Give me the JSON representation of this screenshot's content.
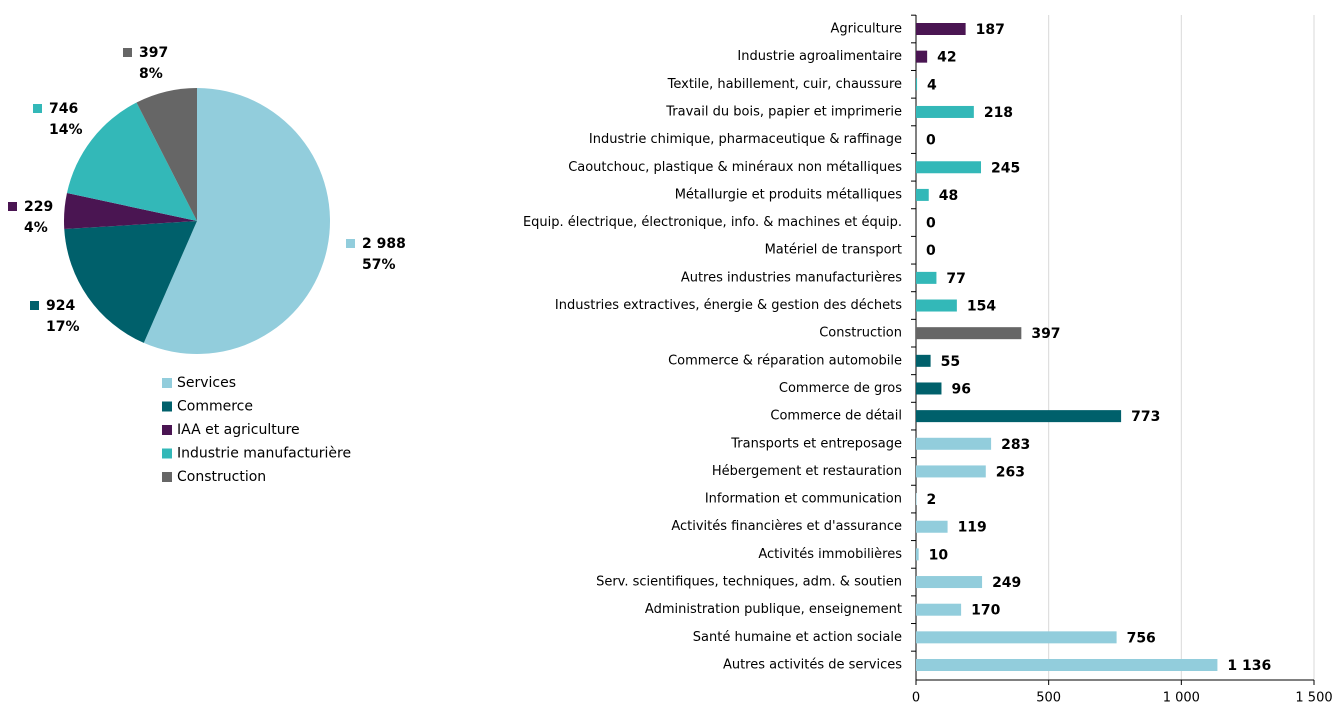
{
  "chart_data": [
    {
      "type": "pie",
      "categories": [
        "Services",
        "Commerce",
        "IAA et agriculture",
        "Industrie manufacturière",
        "Construction"
      ],
      "values": [
        2988,
        924,
        229,
        746,
        397
      ],
      "value_labels": [
        "2 988",
        "924",
        "229",
        "746",
        "397"
      ],
      "shares": [
        57,
        17,
        4,
        14,
        8
      ],
      "share_labels": [
        "57%",
        "17%",
        "4%",
        "14%",
        "8%"
      ],
      "colors": [
        "#92cddc",
        "#00606b",
        "#4a1552",
        "#33b8b8",
        "#666666"
      ]
    },
    {
      "type": "hbar",
      "categories": [
        "Agriculture",
        "Industrie agroalimentaire",
        "Textile, habillement, cuir, chaussure",
        "Travail du bois, papier et imprimerie",
        "Industrie chimique, pharmaceutique & raffinage",
        "Caoutchouc, plastique & minéraux non métalliques",
        "Métallurgie et produits métalliques",
        "Equip. électrique, électronique, info. & machines et équip.",
        "Matériel de transport",
        "Autres industries manufacturières",
        "Industries extractives, énergie & gestion des déchets",
        "Construction",
        "Commerce & réparation automobile",
        "Commerce de gros",
        "Commerce de détail",
        "Transports et entreposage",
        "Hébergement et restauration",
        "Information et communication",
        "Activités financières et d'assurance",
        "Activités immobilières",
        "Serv. scientifiques, techniques, adm. & soutien",
        "Administration publique, enseignement",
        "Santé humaine et action sociale",
        "Autres activités de services"
      ],
      "values": [
        187,
        42,
        4,
        218,
        0,
        245,
        48,
        0,
        0,
        77,
        154,
        397,
        55,
        96,
        773,
        283,
        263,
        2,
        119,
        10,
        249,
        170,
        756,
        1136
      ],
      "value_labels": [
        "187",
        "42",
        "4",
        "218",
        "0",
        "245",
        "48",
        "0",
        "0",
        "77",
        "154",
        "397",
        "55",
        "96",
        "773",
        "283",
        "263",
        "2",
        "119",
        "10",
        "249",
        "170",
        "756",
        "1 136"
      ],
      "colors": [
        "#4a1552",
        "#4a1552",
        "#33b8b8",
        "#33b8b8",
        "#33b8b8",
        "#33b8b8",
        "#33b8b8",
        "#33b8b8",
        "#33b8b8",
        "#33b8b8",
        "#33b8b8",
        "#666666",
        "#00606b",
        "#00606b",
        "#00606b",
        "#92cddc",
        "#92cddc",
        "#92cddc",
        "#92cddc",
        "#92cddc",
        "#92cddc",
        "#92cddc",
        "#92cddc",
        "#92cddc"
      ],
      "xlim": [
        0,
        1500
      ],
      "xticks": [
        0,
        500,
        {
          "value": 1000,
          "label": "1 000"
        },
        {
          "value": 1500,
          "label": "1 500"
        }
      ],
      "grid": true
    }
  ]
}
